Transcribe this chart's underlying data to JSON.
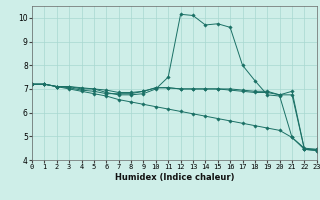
{
  "xlabel": "Humidex (Indice chaleur)",
  "background_color": "#ceeee8",
  "grid_color": "#a8d8d0",
  "line_color": "#1a7065",
  "x_data": [
    0,
    1,
    2,
    3,
    4,
    5,
    6,
    7,
    8,
    9,
    10,
    11,
    12,
    13,
    14,
    15,
    16,
    17,
    18,
    19,
    20,
    21,
    22,
    23
  ],
  "series": [
    [
      7.2,
      7.2,
      7.1,
      7.1,
      7.05,
      7.0,
      6.95,
      6.85,
      6.85,
      6.9,
      7.05,
      7.05,
      7.0,
      7.0,
      7.0,
      7.0,
      7.0,
      6.95,
      6.9,
      6.9,
      6.75,
      6.9,
      4.45,
      4.4
    ],
    [
      7.2,
      7.2,
      7.1,
      7.1,
      7.0,
      7.0,
      6.85,
      6.75,
      6.75,
      6.8,
      7.0,
      7.5,
      10.15,
      10.1,
      9.7,
      9.75,
      9.6,
      8.0,
      7.35,
      6.75,
      6.7,
      4.95,
      4.45,
      4.4
    ],
    [
      7.2,
      7.2,
      7.1,
      7.05,
      6.95,
      6.9,
      6.8,
      6.8,
      6.8,
      6.9,
      7.05,
      7.05,
      7.0,
      7.0,
      7.0,
      7.0,
      6.95,
      6.9,
      6.85,
      6.85,
      6.75,
      6.75,
      4.45,
      4.45
    ],
    [
      7.2,
      7.2,
      7.1,
      7.0,
      6.9,
      6.8,
      6.7,
      6.55,
      6.45,
      6.35,
      6.25,
      6.15,
      6.05,
      5.95,
      5.85,
      5.75,
      5.65,
      5.55,
      5.45,
      5.35,
      5.25,
      4.95,
      4.5,
      4.45
    ]
  ],
  "xlim": [
    0,
    23
  ],
  "ylim": [
    4.0,
    10.5
  ],
  "yticks": [
    4,
    5,
    6,
    7,
    8,
    9,
    10
  ],
  "xticks": [
    0,
    1,
    2,
    3,
    4,
    5,
    6,
    7,
    8,
    9,
    10,
    11,
    12,
    13,
    14,
    15,
    16,
    17,
    18,
    19,
    20,
    21,
    22,
    23
  ]
}
